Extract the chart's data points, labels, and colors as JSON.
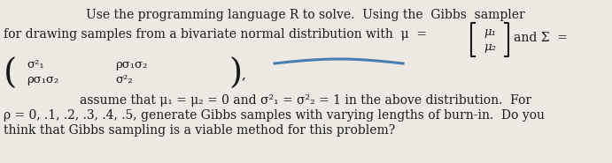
{
  "bg_color": "#ede9e3",
  "text_color": "#1a1a1a",
  "line1": "Use the programming language R to solve.  Using the  Gibbs  sampler",
  "line2_start": "for drawing samples from a bivariate normal distribution with  μ  =",
  "line2_end": "and Σ  =",
  "mu1": "μ₁",
  "mu2": "μ₂",
  "mat_r1c1": "σ²₁",
  "mat_r1c2": "ρσ₁σ₂",
  "mat_r2c1": "ρσ₁σ₂",
  "mat_r2c2": "σ²₂",
  "line4": "assume that μ₁ = μ₂ = 0 and σ²₁ = σ²₂ = 1 in the above distribution.  For",
  "line5": "ρ = 0, .1, .2, .3, .4, .5, generate Gibbs samples with varying lengths of burn-in.  Do you",
  "line6": "think that Gibbs sampling is a viable method for this problem?",
  "blue_line_color": "#4a7fb5",
  "fs": 10.0,
  "fs_matrix": 9.5,
  "fs_paren": 28
}
